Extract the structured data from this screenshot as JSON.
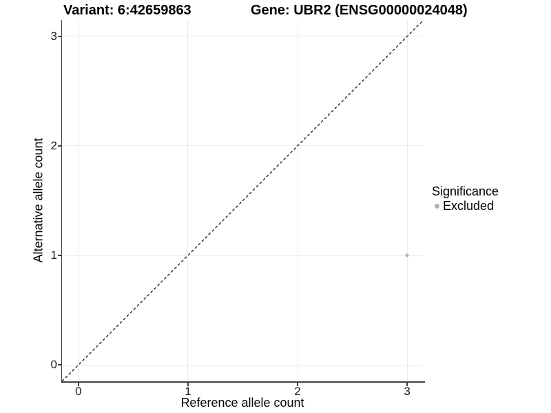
{
  "titles": {
    "variant": "Variant: 6:42659863",
    "gene": "Gene: UBR2 (ENSG00000024048)"
  },
  "axes": {
    "x_label": "Reference allele count",
    "y_label": "Alternative allele count"
  },
  "legend": {
    "title": "Significance",
    "items": [
      {
        "label": "Excluded",
        "color": "#b3b3b3"
      }
    ]
  },
  "colors": {
    "gridline": "#ebebeb",
    "axis_line": "#404040",
    "reference_line": "#000000",
    "point_excluded": "#b3b3b3",
    "background": "#ffffff"
  },
  "chart_data": {
    "type": "scatter",
    "title": "Variant: 6:42659863 / Gene: UBR2 (ENSG00000024048)",
    "xlabel": "Reference allele count",
    "ylabel": "Alternative allele count",
    "xlim": [
      -0.15,
      3.15
    ],
    "ylim": [
      -0.15,
      3.15
    ],
    "x_ticks": [
      0,
      1,
      2,
      3
    ],
    "y_ticks": [
      0,
      1,
      2,
      3
    ],
    "grid": "major",
    "legend_position": "right",
    "series": [
      {
        "name": "Excluded",
        "color": "#b3b3b3",
        "points": [
          {
            "x": 3,
            "y": 1
          }
        ]
      }
    ],
    "reference_line": {
      "type": "identity",
      "slope": 1,
      "intercept": 0,
      "style": "dashed",
      "color": "#000000"
    }
  }
}
